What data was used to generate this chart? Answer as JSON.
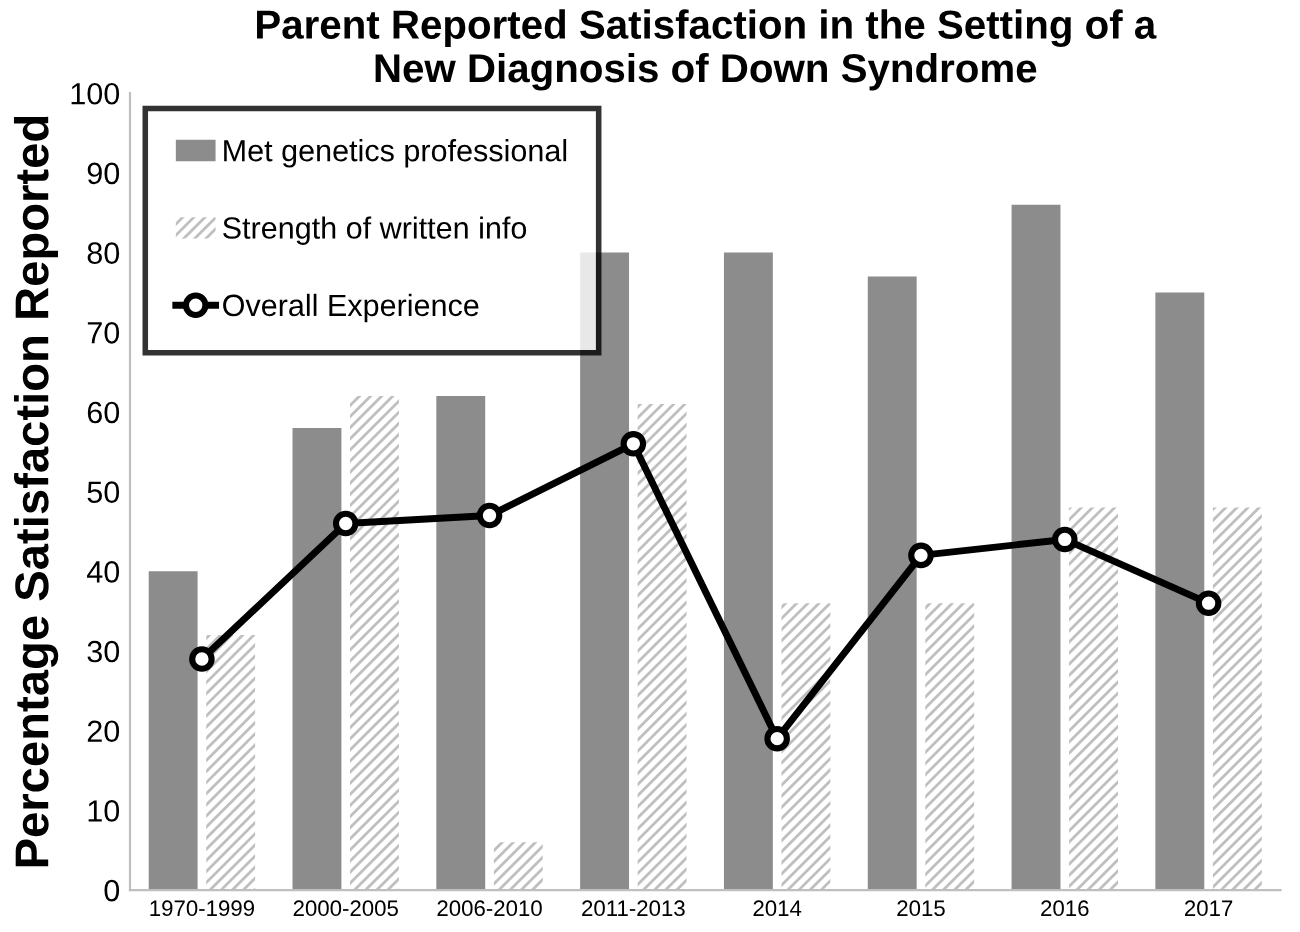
{
  "chart_data": {
    "type": "bar",
    "title": "Parent Reported Satisfaction in the Setting of a\nNew Diagnosis of Down Syndrome",
    "ylabel": "Percentage Satisfaction Reported",
    "categories": [
      "1970-1999",
      "2000-2005",
      "2006-2010",
      "2011-2013",
      "2014",
      "2015",
      "2016",
      "2017"
    ],
    "series": [
      {
        "name": "Met genetics professional",
        "color": "#8c8c8c",
        "values": [
          40,
          58,
          62,
          80,
          80,
          77,
          86,
          75
        ]
      },
      {
        "name": "Strength of written info",
        "color": "#bfbfbf",
        "values": [
          32,
          62,
          6,
          61,
          36,
          36,
          48,
          48
        ]
      },
      {
        "name": "Overall Experience",
        "type": "line",
        "color": "#000000",
        "marker": "circle",
        "line_style": "solid",
        "values": [
          29,
          46,
          47,
          56,
          19,
          42,
          44,
          36
        ]
      }
    ],
    "ylim": [
      0,
      100
    ],
    "yticks": [
      0,
      10,
      20,
      30,
      40,
      50,
      60,
      70,
      80,
      90,
      100
    ],
    "grid": false,
    "legend": "top left"
  }
}
